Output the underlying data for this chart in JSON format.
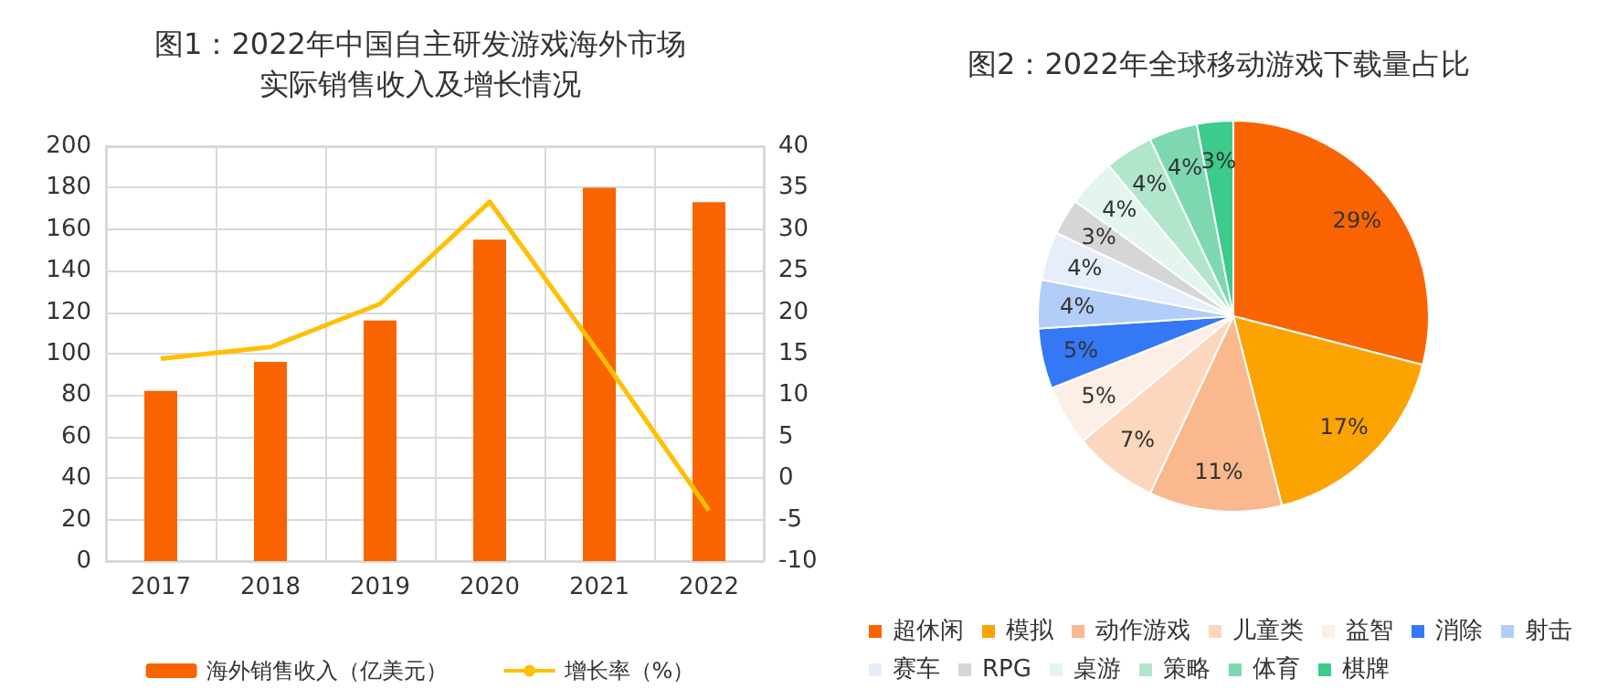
{
  "chart_data": [
    {
      "type": "bar",
      "title": "图1：2022年中国自主研发游戏海外市场实际销售收入及增长情况",
      "categories": [
        "2017",
        "2018",
        "2019",
        "2020",
        "2021",
        "2022"
      ],
      "series": [
        {
          "name": "海外销售收入（亿美元）",
          "color": "#fa6400",
          "values": [
            82,
            96,
            116,
            155,
            180,
            173
          ]
        },
        {
          "name": "增长率（%）",
          "type": "line",
          "axis": "y2",
          "color": "#ffc000",
          "values": [
            14.4,
            15.8,
            21.0,
            33.3,
            15.0,
            -3.9
          ]
        }
      ],
      "ylim": [
        0,
        200
      ],
      "yticks": [
        0,
        20,
        40,
        60,
        80,
        100,
        120,
        140,
        160,
        180,
        200
      ],
      "y2lim": [
        -10,
        40
      ],
      "y2ticks": [
        -10,
        -5,
        0,
        5,
        10,
        15,
        20,
        25,
        30,
        35,
        40
      ],
      "grid": true,
      "legend": "bottom",
      "marker": "none",
      "line_style": "solid"
    },
    {
      "type": "pie",
      "title": "图2：2022年全球移动游戏下载量占比",
      "categories": [
        "超休闲",
        "模拟",
        "动作游戏",
        "儿童类",
        "益智",
        "消除",
        "射击",
        "赛车",
        "RPG",
        "桌游",
        "策略",
        "体育",
        "棋牌"
      ],
      "values": [
        29,
        17,
        11,
        7,
        5,
        5,
        4,
        4,
        3,
        4,
        4,
        4,
        3
      ],
      "value_labels": [
        "29%",
        "17%",
        "11%",
        "7%",
        "5%",
        "5%",
        "4%",
        "4%",
        "3%",
        "4%",
        "4%",
        "4%",
        "3%"
      ],
      "colors": [
        "#fa6400",
        "#fba300",
        "#f9b88e",
        "#fcd6bd",
        "#fdefe6",
        "#3478f6",
        "#b3cdf9",
        "#e6eefc",
        "#d6d6d6",
        "#e3f5ee",
        "#b1e6cc",
        "#7dd8b0",
        "#3ccb8b"
      ],
      "legend": "bottom"
    }
  ]
}
